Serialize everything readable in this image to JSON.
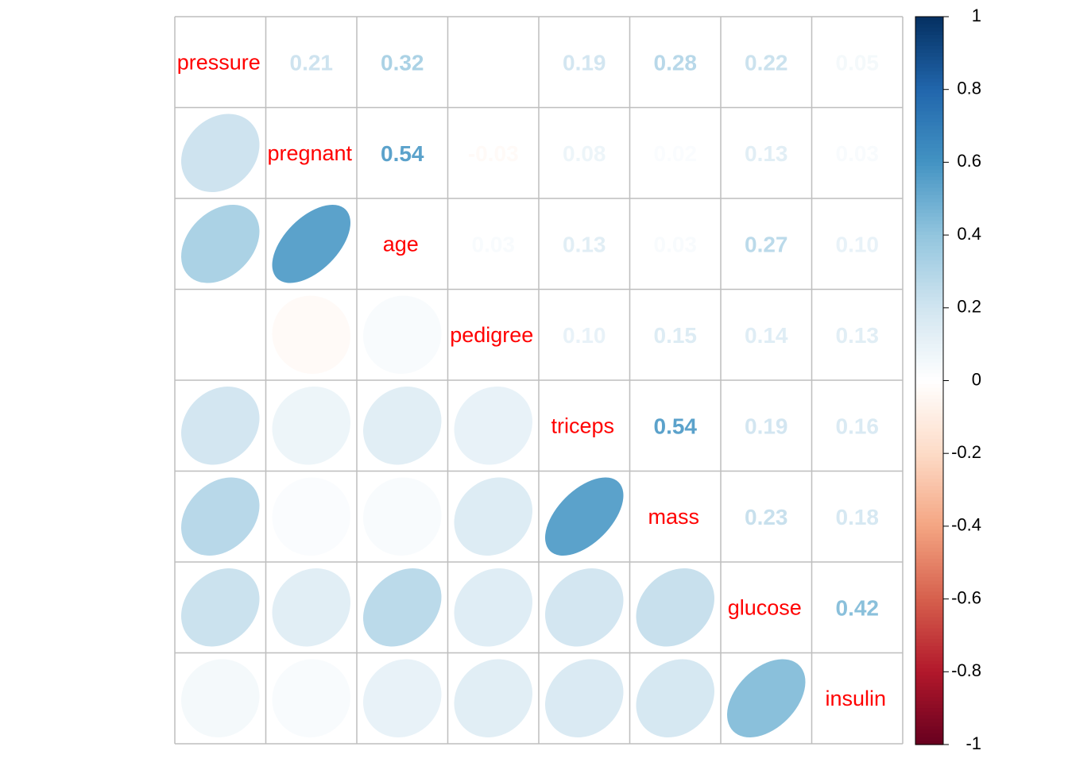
{
  "chart_data": {
    "type": "heatmap",
    "variables": [
      "pressure",
      "pregnant",
      "age",
      "pedigree",
      "triceps",
      "mass",
      "glucose",
      "insulin"
    ],
    "correlations": [
      [
        1.0,
        0.21,
        0.32,
        0.0,
        0.19,
        0.28,
        0.22,
        0.05
      ],
      [
        0.21,
        1.0,
        0.54,
        -0.03,
        0.08,
        0.02,
        0.13,
        0.03
      ],
      [
        0.32,
        0.54,
        1.0,
        0.03,
        0.13,
        0.03,
        0.27,
        0.1
      ],
      [
        0.0,
        -0.03,
        0.03,
        1.0,
        0.1,
        0.15,
        0.14,
        0.13
      ],
      [
        0.19,
        0.08,
        0.13,
        0.1,
        1.0,
        0.54,
        0.19,
        0.16
      ],
      [
        0.28,
        0.02,
        0.03,
        0.15,
        0.54,
        1.0,
        0.23,
        0.18
      ],
      [
        0.22,
        0.13,
        0.27,
        0.14,
        0.19,
        0.23,
        1.0,
        0.42
      ],
      [
        0.05,
        0.03,
        0.1,
        0.13,
        0.16,
        0.18,
        0.42,
        1.0
      ]
    ],
    "upper_triangle": "number",
    "lower_triangle": "ellipse",
    "diagonal": "label",
    "label_color": "#ff0000",
    "grid": true,
    "grid_color": "#bebebe",
    "legend": "colorbar-right",
    "colorbar": {
      "range": [
        -1,
        1
      ],
      "ticks": [
        "1",
        "0.8",
        "0.6",
        "0.4",
        "0.2",
        "0",
        "-0.2",
        "-0.4",
        "-0.6",
        "-0.8",
        "-1"
      ]
    },
    "colors": {
      "negative_strong": "#67001f",
      "neutral": "#ffffff",
      "positive_strong": "#053061"
    }
  }
}
